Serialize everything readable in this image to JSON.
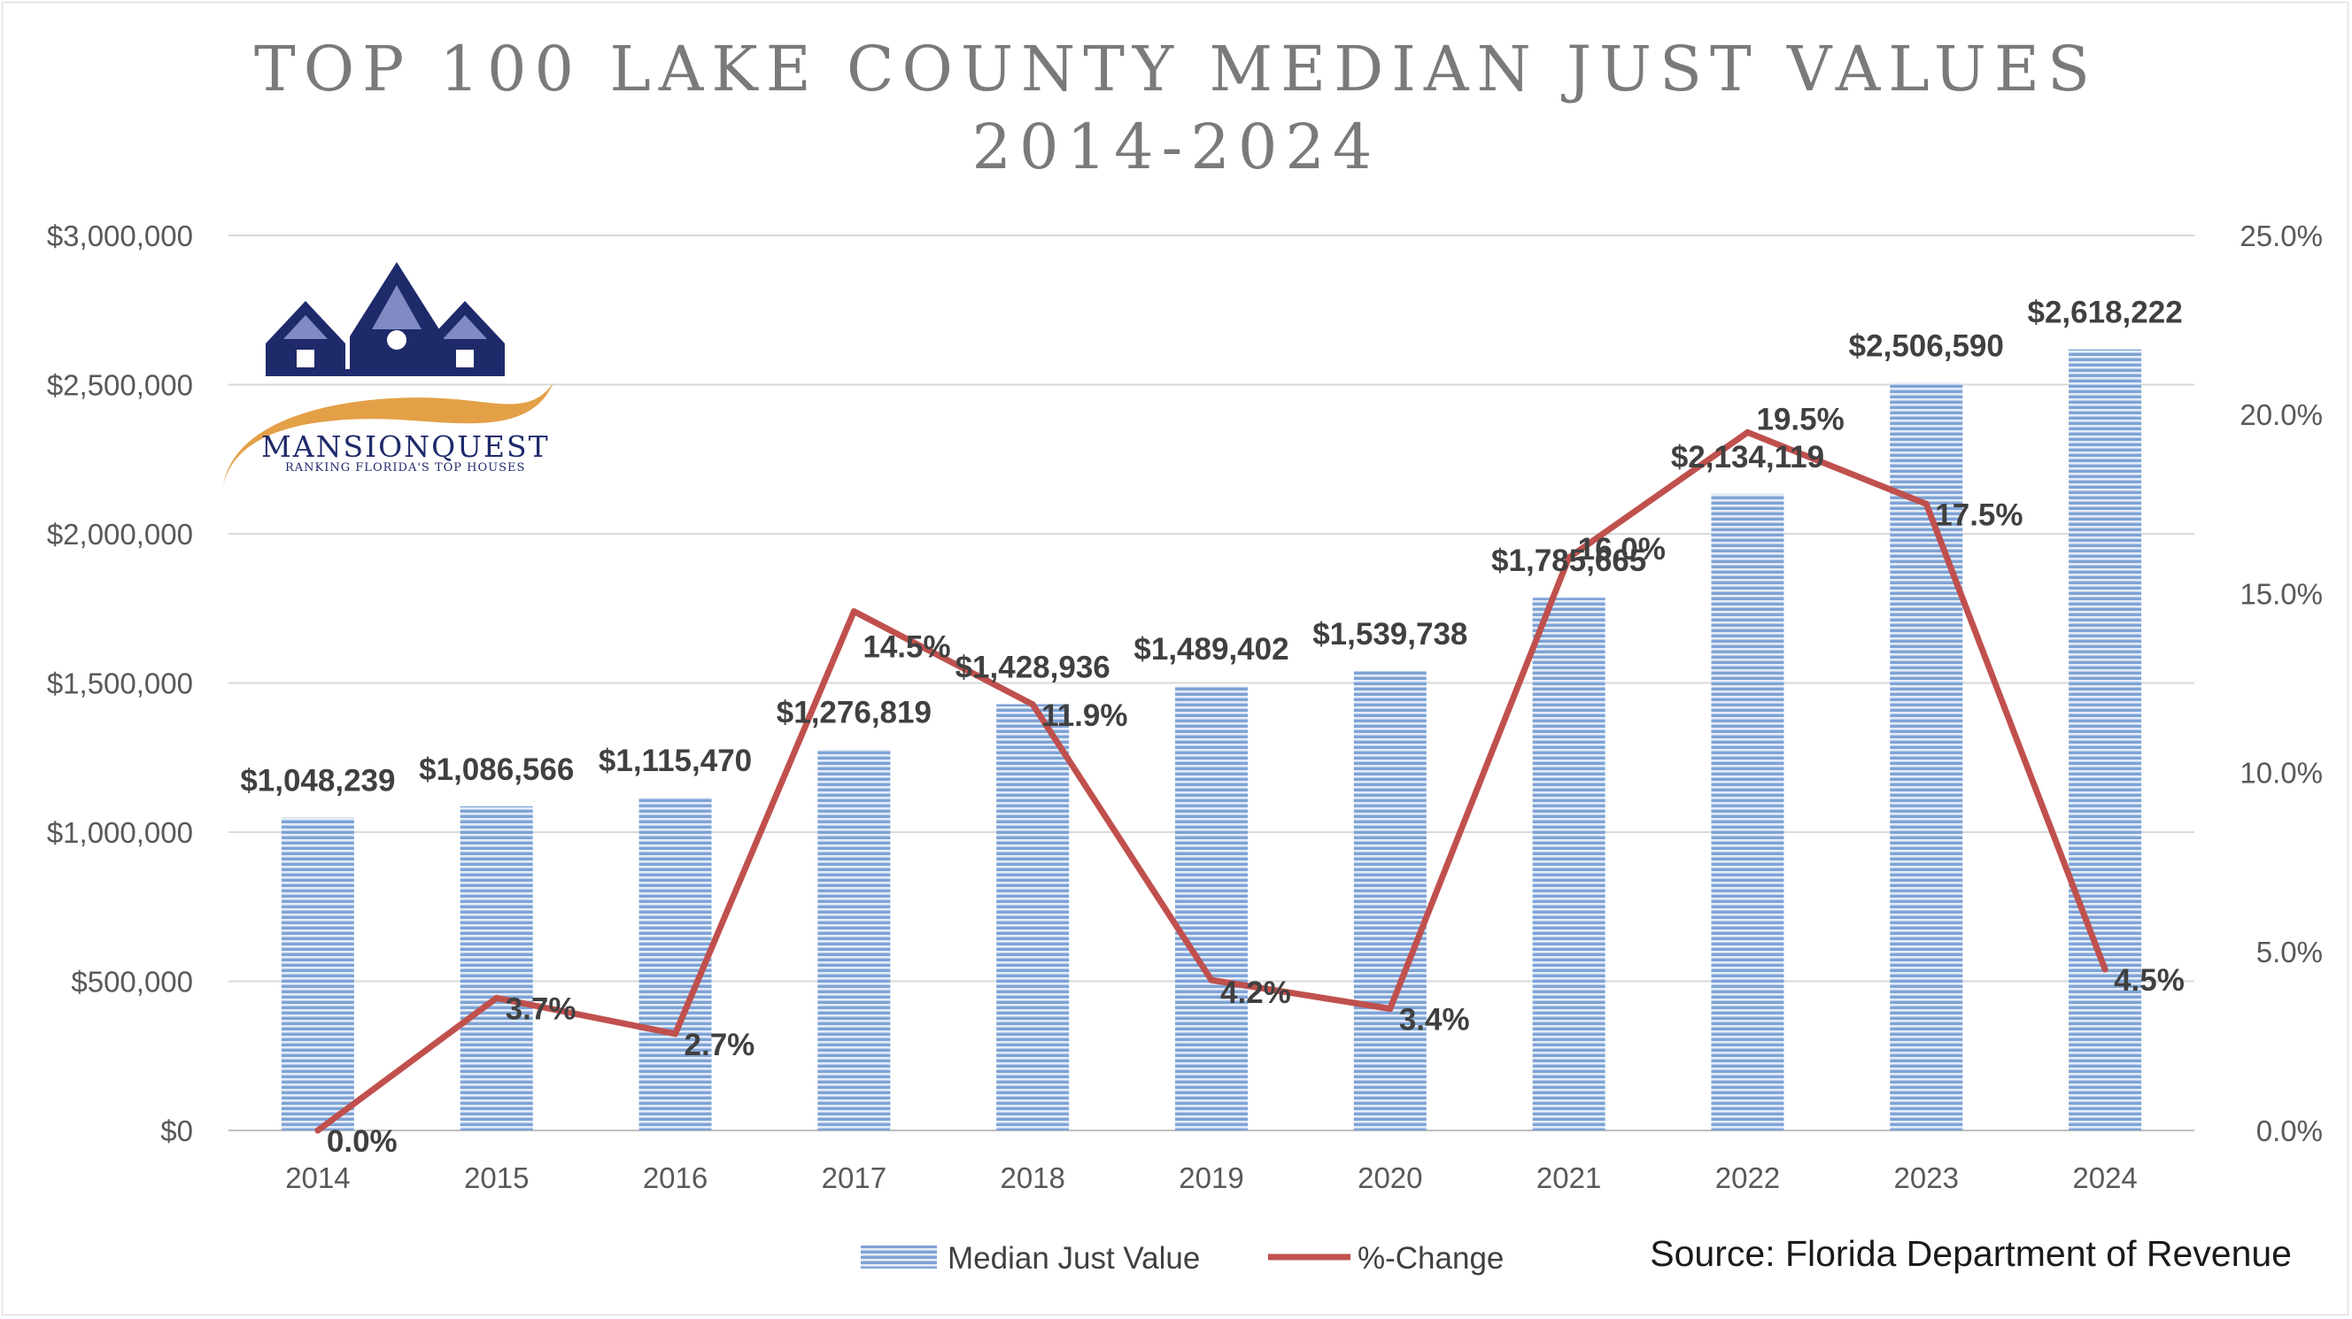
{
  "chart_data": {
    "type": "bar",
    "title": "TOP 100 LAKE COUNTY MEDIAN JUST VALUES",
    "subtitle": "2014-2024",
    "categories": [
      "2014",
      "2015",
      "2016",
      "2017",
      "2018",
      "2019",
      "2020",
      "2021",
      "2022",
      "2023",
      "2024"
    ],
    "series": [
      {
        "name": "Median Just Value",
        "type": "bar",
        "axis": "left",
        "color": "#5b87c6",
        "values": [
          1048239,
          1086566,
          1115470,
          1276819,
          1428936,
          1489402,
          1539738,
          1785665,
          2134119,
          2506590,
          2618222
        ],
        "labels": [
          "$1,048,239",
          "$1,086,566",
          "$1,115,470",
          "$1,276,819",
          "$1,428,936",
          "$1,489,402",
          "$1,539,738",
          "$1,785,665",
          "$2,134,119",
          "$2,506,590",
          "$2,618,222"
        ]
      },
      {
        "name": "%-Change",
        "type": "line",
        "axis": "right",
        "color": "#c0504d",
        "values": [
          0.0,
          3.7,
          2.7,
          14.5,
          11.9,
          4.2,
          3.4,
          16.0,
          19.5,
          17.5,
          4.5
        ],
        "labels": [
          "0.0%",
          "3.7%",
          "2.7%",
          "14.5%",
          "11.9%",
          "4.2%",
          "3.4%",
          "16.0%",
          "19.5%",
          "17.5%",
          "4.5%"
        ]
      }
    ],
    "y_left": {
      "ylim": [
        0,
        3000000
      ],
      "ticks": [
        0,
        500000,
        1000000,
        1500000,
        2000000,
        2500000,
        3000000
      ],
      "tick_labels": [
        "$0",
        "$500,000",
        "$1,000,000",
        "$1,500,000",
        "$2,000,000",
        "$2,500,000",
        "$3,000,000"
      ]
    },
    "y_right": {
      "ylim": [
        0,
        25
      ],
      "ticks": [
        0,
        5,
        10,
        15,
        20,
        25
      ],
      "tick_labels": [
        "0.0%",
        "5.0%",
        "10.0%",
        "15.0%",
        "20.0%",
        "25.0%"
      ]
    },
    "grid": true,
    "legend": {
      "position": "bottom",
      "items": [
        "Median Just Value",
        "%-Change"
      ]
    }
  },
  "source": "Source: Florida Department of Revenue",
  "logo": {
    "name": "MANSIONQUEST",
    "tagline": "RANKING FLORIDA'S TOP HOUSES"
  },
  "colors": {
    "bar": "#5b87c6",
    "bar_stripe": "#dfe8f5",
    "line": "#c0504d",
    "grid": "#d9d9d9",
    "logo_navy": "#1f2a6b",
    "logo_gold": "#e3a047"
  }
}
